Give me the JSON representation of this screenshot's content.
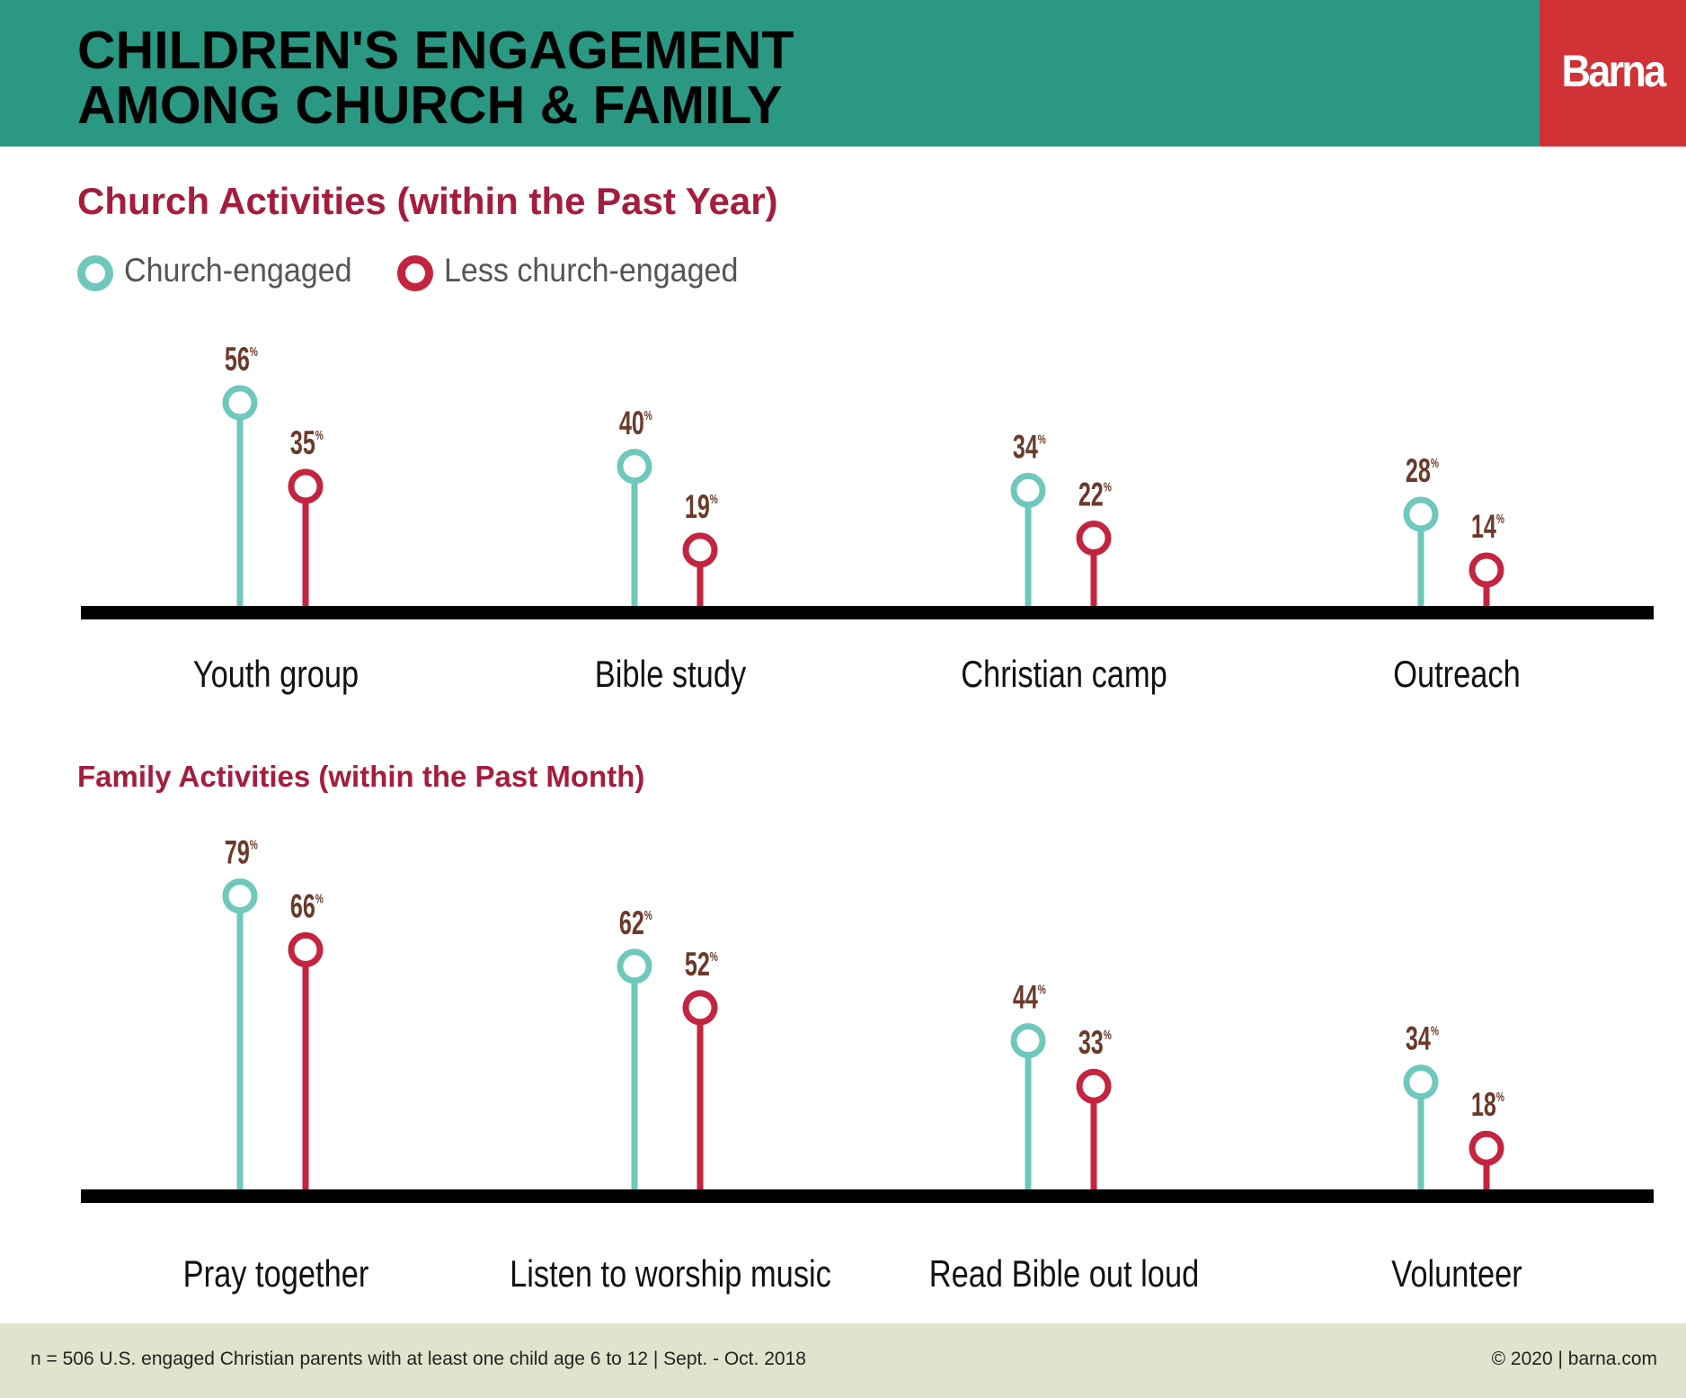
{
  "header": {
    "title_line1": "CHILDREN'S ENGAGEMENT",
    "title_line2": "AMONG CHURCH & FAMILY",
    "brand": "Barna"
  },
  "legend": [
    {
      "label": "Church-engaged",
      "color": "#6fc8bc"
    },
    {
      "label": "Less church-engaged",
      "color": "#c4243f"
    }
  ],
  "chart_data": [
    {
      "type": "lollipop",
      "title": "Church Activities (within the Past Year)",
      "categories": [
        "Youth group",
        "Bible study",
        "Christian camp",
        "Outreach"
      ],
      "series": [
        {
          "name": "Church-engaged",
          "values": [
            56,
            40,
            34,
            28
          ]
        },
        {
          "name": "Less church-engaged",
          "values": [
            35,
            19,
            22,
            14
          ]
        }
      ],
      "unit": "%"
    },
    {
      "type": "lollipop",
      "title": "Family Activities (within the Past Month)",
      "categories": [
        "Pray together",
        "Listen to worship music",
        "Read Bible out loud",
        "Volunteer"
      ],
      "series": [
        {
          "name": "Church-engaged",
          "values": [
            79,
            62,
            44,
            34
          ]
        },
        {
          "name": "Less church-engaged",
          "values": [
            66,
            52,
            33,
            18
          ]
        }
      ],
      "unit": "%"
    }
  ],
  "colors": {
    "header": "#2a9882",
    "brand": "#d03236",
    "church_engaged": "#6fc8bc",
    "less_engaged": "#c4243f",
    "value_label": "#6b3a2a",
    "section_title": "#a51d3e",
    "footer": "#e1e4cc"
  },
  "footer": {
    "note": "n = 506 U.S. engaged Christian parents with at least one child age 6 to 12  |  Sept. - Oct. 2018",
    "copyright": "© 2020 | barna.com"
  }
}
